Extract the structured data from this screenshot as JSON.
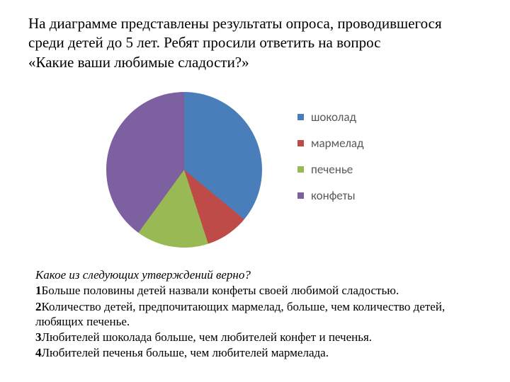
{
  "intro": {
    "line1": "На диаграмме представлены результаты опроса, проводившегося",
    "line2": "среди детей до 5 лет. Ребят просили ответить на вопрос",
    "line3": "«Какие ваши любимые сладости?»"
  },
  "chart": {
    "type": "pie",
    "background_color": "#ffffff",
    "slices": [
      {
        "label": "шоколад",
        "value": 36,
        "color": "#4a7ebb"
      },
      {
        "label": "мармелад",
        "value": 9,
        "color": "#be4b48"
      },
      {
        "label": "печенье",
        "value": 15,
        "color": "#98b954"
      },
      {
        "label": "конфеты",
        "value": 40,
        "color": "#7d60a0"
      }
    ],
    "legend_fontsize": 17,
    "legend_color": "#595959",
    "swatch_size": 9
  },
  "question": {
    "title": "Какое из следующих утверждений верно?",
    "options": [
      {
        "num": "1",
        "text": "Больше половины детей назвали конфеты своей любимой сладостью."
      },
      {
        "num": "2",
        "text": "Количество детей, предпочитающих мармелад, больше, чем количество детей, любящих печенье."
      },
      {
        "num": "3",
        "text": "Любителей шоколада больше, чем любителей конфет и печенья."
      },
      {
        "num": "4",
        "text": "Любителей печенья больше, чем любителей мармелада."
      }
    ]
  }
}
